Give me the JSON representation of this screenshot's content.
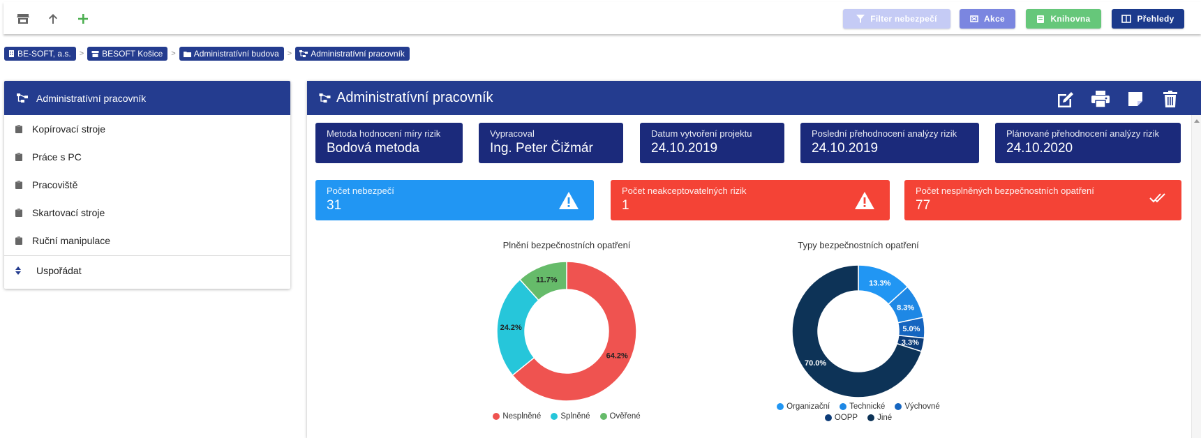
{
  "toolbar": {
    "filter_label": "Filter nebezpečí",
    "akce_label": "Akce",
    "knihovna_label": "Knihovna",
    "prehledy_label": "Přehledy"
  },
  "breadcrumb": [
    {
      "label": "BE-SOFT, a.s.",
      "icon": "building-icon"
    },
    {
      "label": "BESOFT Košice",
      "icon": "store-icon"
    },
    {
      "label": "Administratívní budova",
      "icon": "folder-icon"
    },
    {
      "label": "Administratívní pracovník",
      "icon": "hierarchy-icon"
    }
  ],
  "sidebar": {
    "title": "Administratívní pracovník",
    "items": [
      {
        "label": "Kopírovací stroje"
      },
      {
        "label": "Práce s PC"
      },
      {
        "label": "Pracoviště"
      },
      {
        "label": "Skartovací stroje"
      },
      {
        "label": "Ruční manipulace"
      }
    ],
    "sort_label": "Uspořádat"
  },
  "main": {
    "title": "Administratívní pracovník",
    "info": [
      {
        "label": "Metoda hodnocení míry rizik",
        "value": "Bodová metoda"
      },
      {
        "label": "Vypracoval",
        "value": "Ing. Peter Čižmár"
      },
      {
        "label": "Datum vytvoření projektu",
        "value": "24.10.2019"
      },
      {
        "label": "Poslední přehodnocení analýzy rizik",
        "value": "24.10.2019"
      },
      {
        "label": "Plánované přehodnocení analýzy rizik",
        "value": "24.10.2020"
      }
    ],
    "stats": [
      {
        "label": "Počet nebezpečí",
        "value": "31",
        "color": "#2196f3"
      },
      {
        "label": "Počet neakceptovatelných rizik",
        "value": "1",
        "color": "#f44336"
      },
      {
        "label": "Počet nesplněných bezpečnostních opatření",
        "value": "77",
        "color": "#f44336"
      }
    ]
  },
  "chart_data": [
    {
      "type": "pie",
      "title": "Plnění bezpečnostních opatření",
      "categories": [
        "Nesplněné",
        "Splněné",
        "Ověřené"
      ],
      "values": [
        64.2,
        24.2,
        11.7
      ],
      "labels": [
        "64.2%",
        "24.2%",
        "11.7%"
      ],
      "colors": [
        "#ef5350",
        "#26c6da",
        "#66bb6a"
      ],
      "legend": "bottom"
    },
    {
      "type": "pie",
      "title": "Typy bezpečnostních opatření",
      "categories": [
        "Organizační",
        "Technické",
        "Výchovné",
        "OOPP",
        "Jiné"
      ],
      "values": [
        13.3,
        8.3,
        5.0,
        3.3,
        70.0
      ],
      "labels": [
        "13.3%",
        "8.3%",
        "5.0%",
        "3.3%",
        "70.0%"
      ],
      "colors": [
        "#2196f3",
        "#1e88e5",
        "#1565c0",
        "#0d3c78",
        "#0d3357"
      ],
      "legend": "bottom"
    }
  ]
}
